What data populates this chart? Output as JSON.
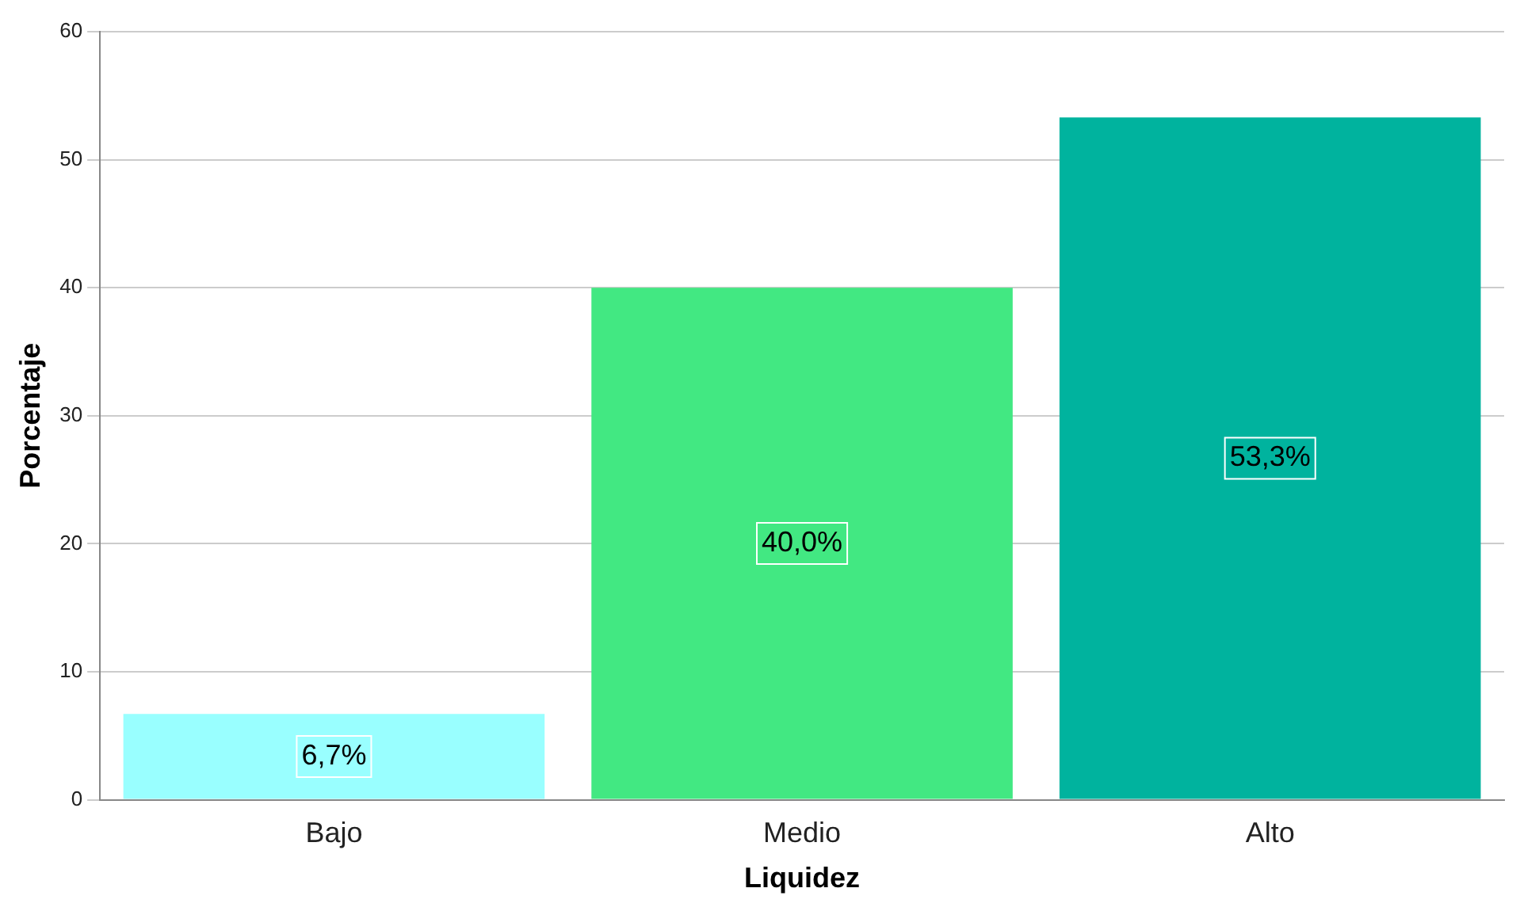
{
  "chart_data": {
    "type": "bar",
    "xlabel": "Liquidez",
    "ylabel": "Porcentaje",
    "categories": [
      "Bajo",
      "Medio",
      "Alto"
    ],
    "values": [
      6.7,
      40.0,
      53.3
    ],
    "colors": [
      "#99ffff",
      "#42e882",
      "#00b39e"
    ],
    "value_labels": [
      "6,7%",
      "40,0%",
      "53,3%"
    ],
    "ylim": [
      0,
      60
    ],
    "yticks": [
      0,
      10,
      20,
      30,
      40,
      50,
      60
    ],
    "grid": "y",
    "legend": false
  }
}
